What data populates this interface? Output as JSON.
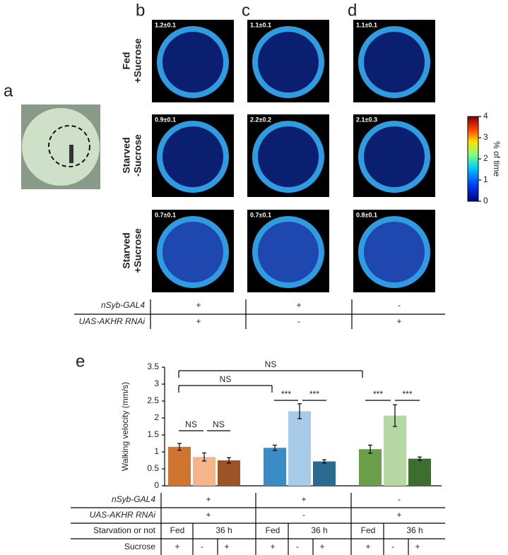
{
  "panel_labels": [
    "a",
    "b",
    "c",
    "d",
    "e"
  ],
  "heatmaps": {
    "row_labels": [
      [
        "Fed",
        "+Sucrose"
      ],
      [
        "Starved",
        "-Sucrose"
      ],
      [
        "Starved",
        "+Sucrose"
      ]
    ],
    "values": [
      [
        "1.2±0.1",
        "1.1±0.1",
        "1.1±0.1"
      ],
      [
        "0.9±0.1",
        "2.2±0.2",
        "2.1±0.3"
      ],
      [
        "0.7±0.1",
        "0.7±0.1",
        "0.8±0.1"
      ]
    ]
  },
  "colorbar": {
    "label": "% of time",
    "lim": [
      0,
      4
    ],
    "ticks": [
      0,
      1,
      2,
      3,
      4
    ]
  },
  "genotype_table": {
    "rows": [
      {
        "label": "nSyb-GAL4",
        "cells": [
          "+",
          "+",
          "-"
        ]
      },
      {
        "label": "UAS-AKHR RNAi",
        "cells": [
          "+",
          "-",
          "+"
        ]
      }
    ]
  },
  "chart_data": {
    "type": "bar",
    "y_label": "Walking velocity (mm/s)",
    "values": [
      1.15,
      0.85,
      0.75,
      1.12,
      2.2,
      0.72,
      1.08,
      2.07,
      0.8
    ],
    "errors": [
      0.1,
      0.12,
      0.08,
      0.08,
      0.22,
      0.05,
      0.12,
      0.32,
      0.05
    ],
    "colors": [
      "#d0752f",
      "#f6b48a",
      "#9c5326",
      "#3b8bc7",
      "#a9cbea",
      "#2a6b91",
      "#6a9e48",
      "#b6d9a3",
      "#3d6e2f"
    ],
    "ylim": [
      0,
      3.5
    ],
    "yticks": [
      0,
      0.5,
      1,
      1.5,
      2,
      2.5,
      3,
      3.5
    ],
    "annotations": [
      "NS",
      "NS",
      "NS",
      "NS",
      "***",
      "***",
      "***",
      "***"
    ]
  },
  "condition_table": {
    "rows": [
      {
        "label": "nSyb-GAL4",
        "cells": [
          "+",
          "+",
          "-"
        ]
      },
      {
        "label": "UAS-AKHR RNAi",
        "cells": [
          "+",
          "-",
          "+"
        ]
      },
      {
        "label": "Starvation or not",
        "cells": [
          "Fed",
          "36 h",
          "Fed",
          "36 h",
          "Fed",
          "36 h"
        ]
      },
      {
        "label": "Sucrose",
        "cells": [
          "+",
          "-",
          "+",
          "+",
          "-",
          "+",
          "+",
          "-",
          "+"
        ]
      }
    ]
  }
}
